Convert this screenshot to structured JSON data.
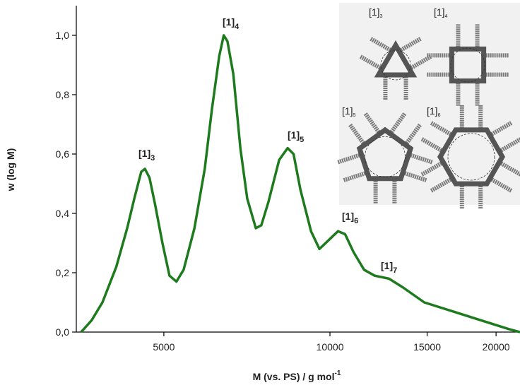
{
  "chart_data": {
    "type": "line",
    "log_x": true,
    "xlabel": "M (vs. PS) / g mol",
    "xlabel_sup": "-1",
    "ylabel": "w (log M)",
    "x": [
      3540,
      3700,
      3870,
      4100,
      4290,
      4420,
      4550,
      4620,
      4710,
      4820,
      4970,
      5120,
      5270,
      5430,
      5680,
      5930,
      6110,
      6300,
      6420,
      6520,
      6680,
      6880,
      7080,
      7340,
      7510,
      7740,
      8090,
      8380,
      8590,
      8840,
      9240,
      9570,
      9950,
      10340,
      10650,
      11030,
      11530,
      12050,
      12790,
      13570,
      14820,
      16670,
      18750,
      21100,
      22100
    ],
    "values": [
      0.0,
      0.04,
      0.1,
      0.22,
      0.35,
      0.45,
      0.54,
      0.55,
      0.52,
      0.43,
      0.3,
      0.19,
      0.17,
      0.21,
      0.35,
      0.55,
      0.75,
      0.93,
      1.0,
      0.98,
      0.87,
      0.62,
      0.45,
      0.35,
      0.36,
      0.44,
      0.58,
      0.62,
      0.6,
      0.48,
      0.34,
      0.28,
      0.31,
      0.34,
      0.33,
      0.27,
      0.21,
      0.19,
      0.18,
      0.15,
      0.1,
      0.07,
      0.04,
      0.01,
      0.0
    ],
    "color": "#1d7a1d",
    "xlim": [
      3470,
      22100
    ],
    "xticks": [
      5000,
      10000,
      15000,
      20000
    ],
    "ylim": [
      0,
      1.1
    ],
    "yticks": [
      {
        "value": 0,
        "label": "0,0"
      },
      {
        "value": 0.2,
        "label": "0,2"
      },
      {
        "value": 0.4,
        "label": "0,4"
      },
      {
        "value": 0.6,
        "label": "0,6"
      },
      {
        "value": 0.8,
        "label": "0,8"
      },
      {
        "value": 1.0,
        "label": "1,0"
      }
    ],
    "annotations": [
      {
        "text": "[1]",
        "sub": "3"
      },
      {
        "text": "[1]",
        "sub": "4"
      },
      {
        "text": "[1]",
        "sub": "5"
      },
      {
        "text": "[1]",
        "sub": "6"
      },
      {
        "text": "[1]",
        "sub": "7"
      }
    ],
    "inset_labels": [
      {
        "text": "[1]",
        "sub": "3"
      },
      {
        "text": "[1]",
        "sub": "4"
      },
      {
        "text": "[1]",
        "sub": "5"
      },
      {
        "text": "[1]",
        "sub": "6"
      }
    ]
  }
}
